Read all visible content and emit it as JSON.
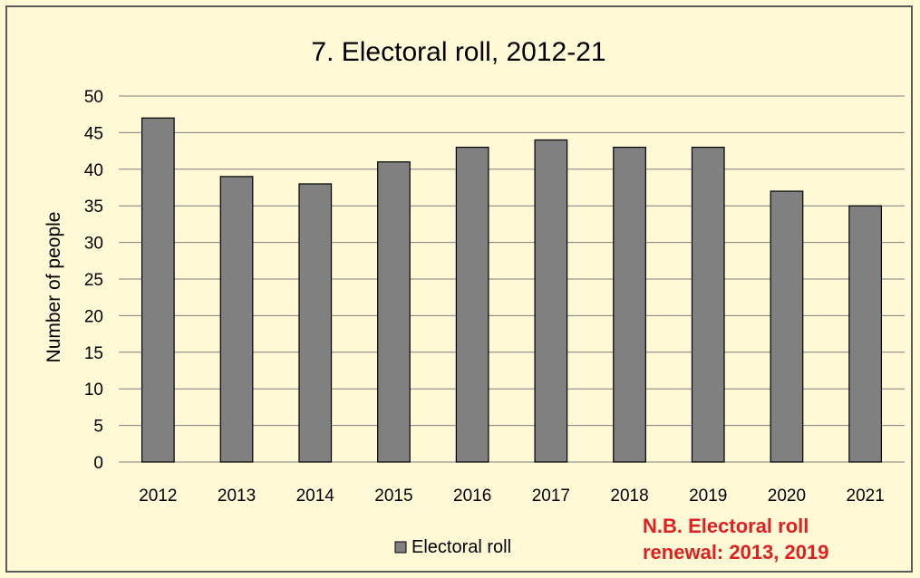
{
  "colors": {
    "background": "#fff9d6",
    "bar_fill": "#808080",
    "bar_stroke": "#000000",
    "gridline": "#7f7f7f",
    "note": "#e02020"
  },
  "chart_data": {
    "type": "bar",
    "title": "7. Electoral roll, 2012-21",
    "xlabel": "",
    "ylabel": "Number of people",
    "categories": [
      "2012",
      "2013",
      "2014",
      "2015",
      "2016",
      "2017",
      "2018",
      "2019",
      "2020",
      "2021"
    ],
    "series": [
      {
        "name": "Electoral roll",
        "values": [
          47,
          39,
          38,
          41,
          43,
          44,
          43,
          43,
          37,
          35
        ]
      }
    ],
    "ylim": [
      0,
      50
    ],
    "yticks": [
      0,
      5,
      10,
      15,
      20,
      25,
      30,
      35,
      40,
      45,
      50
    ],
    "grid": true,
    "legend": "bottom",
    "annotation": [
      "N.B. Electoral roll",
      "renewal: 2013, 2019"
    ]
  }
}
